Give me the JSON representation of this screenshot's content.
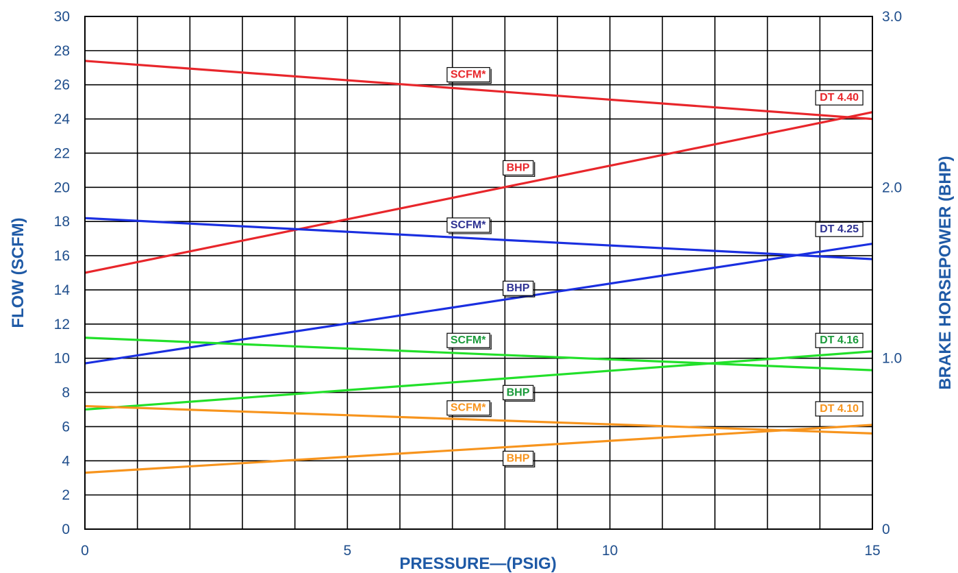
{
  "chart_data": {
    "type": "line",
    "xlabel": "PRESSURE—(PSIG)",
    "ylabel": "FLOW  (SCFM)",
    "y2label": "BRAKE HORSEPOWER (BHP)",
    "xlim": [
      0,
      15
    ],
    "ylim": [
      0,
      30
    ],
    "y2lim": [
      0,
      3.0
    ],
    "grid": true,
    "x_ticks": [
      {
        "value": 0,
        "label": "0"
      },
      {
        "value": 5,
        "label": "5"
      },
      {
        "value": 10,
        "label": "10"
      },
      {
        "value": 15,
        "label": "15"
      }
    ],
    "y_ticks": [
      {
        "value": 0,
        "label": "0"
      },
      {
        "value": 2,
        "label": "2"
      },
      {
        "value": 4,
        "label": "4"
      },
      {
        "value": 6,
        "label": "6"
      },
      {
        "value": 8,
        "label": "8"
      },
      {
        "value": 10,
        "label": "10"
      },
      {
        "value": 12,
        "label": "12"
      },
      {
        "value": 14,
        "label": "14"
      },
      {
        "value": 16,
        "label": "16"
      },
      {
        "value": 18,
        "label": "18"
      },
      {
        "value": 20,
        "label": "20"
      },
      {
        "value": 22,
        "label": "22"
      },
      {
        "value": 24,
        "label": "24"
      },
      {
        "value": 26,
        "label": "26"
      },
      {
        "value": 28,
        "label": "28"
      },
      {
        "value": 30,
        "label": "30"
      }
    ],
    "y2_ticks": [
      {
        "value": 0,
        "label": "0"
      },
      {
        "value": 1.0,
        "label": "1.0"
      },
      {
        "value": 2.0,
        "label": "2.0"
      },
      {
        "value": 3.0,
        "label": "3.0"
      }
    ],
    "series": [
      {
        "name": "SCFM*",
        "model": "DT 4.40",
        "axis": "left",
        "color": "#e8262b",
        "text_color": "#e8262b",
        "x": [
          0,
          15
        ],
        "y": [
          27.4,
          24.0
        ],
        "label_at": [
          7.3,
          26.65
        ]
      },
      {
        "name": "BHP",
        "model": "DT 4.40",
        "axis": "right",
        "color": "#e8262b",
        "text_color": "#e8262b",
        "x": [
          0,
          15
        ],
        "y": [
          1.5,
          2.44
        ],
        "label_at": [
          8.25,
          2.12
        ]
      },
      {
        "name": "SCFM*",
        "model": "DT 4.25",
        "axis": "left",
        "color": "#1a2fe0",
        "text_color": "#2e3192",
        "x": [
          0,
          15
        ],
        "y": [
          18.2,
          15.8
        ],
        "label_at": [
          7.3,
          17.85
        ]
      },
      {
        "name": "BHP",
        "model": "DT 4.25",
        "axis": "right",
        "color": "#1a2fe0",
        "text_color": "#2e3192",
        "x": [
          0,
          15
        ],
        "y": [
          0.97,
          1.67
        ],
        "label_at": [
          8.25,
          1.415
        ]
      },
      {
        "name": "SCFM*",
        "model": "DT 4.16",
        "axis": "left",
        "color": "#22e02a",
        "text_color": "#1a9a3a",
        "x": [
          0,
          15
        ],
        "y": [
          11.2,
          9.3
        ],
        "label_at": [
          7.3,
          11.1
        ]
      },
      {
        "name": "BHP",
        "model": "DT 4.16",
        "axis": "right",
        "color": "#22e02a",
        "text_color": "#1a9a3a",
        "x": [
          0,
          15
        ],
        "y": [
          0.7,
          1.04
        ],
        "label_at": [
          8.25,
          0.805
        ]
      },
      {
        "name": "SCFM*",
        "model": "DT 4.10",
        "axis": "left",
        "color": "#f7941d",
        "text_color": "#f7941d",
        "x": [
          0,
          15
        ],
        "y": [
          7.2,
          5.6
        ],
        "label_at": [
          7.3,
          7.15
        ]
      },
      {
        "name": "BHP",
        "model": "DT 4.10",
        "axis": "right",
        "color": "#f7941d",
        "text_color": "#f7941d",
        "x": [
          0,
          15
        ],
        "y": [
          0.33,
          0.61
        ],
        "label_at": [
          8.25,
          0.42
        ]
      }
    ],
    "model_labels": [
      {
        "text": "DT 4.40",
        "color": "#e8262b",
        "y": 25.3
      },
      {
        "text": "DT 4.25",
        "color": "#2e3192",
        "y": 17.6
      },
      {
        "text": "DT 4.16",
        "color": "#1a9a3a",
        "y": 11.1
      },
      {
        "text": "DT 4.10",
        "color": "#f7941d",
        "y": 7.1
      }
    ]
  }
}
